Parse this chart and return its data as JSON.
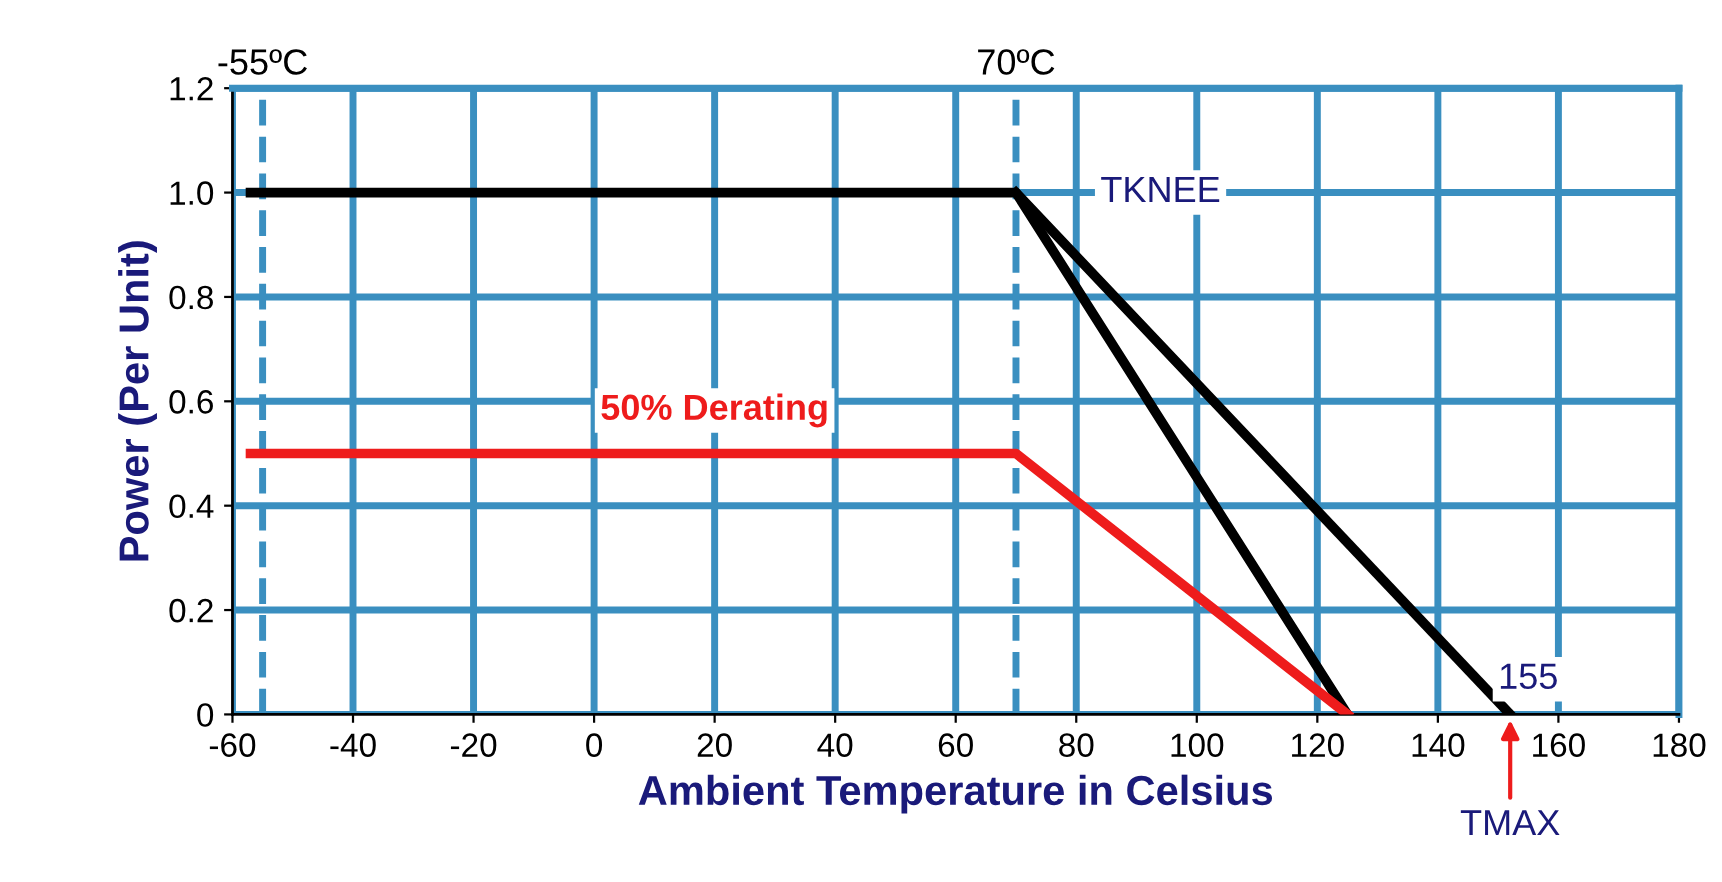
{
  "chart_data": {
    "type": "line",
    "xlabel": "Ambient Temperature in Celsius",
    "ylabel": "Power (Per Unit)",
    "xlim": [
      -60,
      180
    ],
    "xticks": [
      -60,
      -40,
      -20,
      0,
      20,
      40,
      60,
      80,
      100,
      120,
      140,
      160,
      180
    ],
    "ylim": [
      0,
      1.2
    ],
    "yticks": [
      0,
      0.2,
      0.4,
      0.6,
      0.8,
      {
        "value": 1,
        "label": "1.0"
      },
      1.2
    ],
    "grid": true,
    "marker": "none",
    "line_style": "solid",
    "series": [
      {
        "color": "#000000",
        "x": [
          -57,
          70,
          125
        ],
        "values": [
          1.0,
          1.0,
          0
        ]
      },
      {
        "color": "#000000",
        "x": [
          70,
          152
        ],
        "values": [
          1.0,
          0
        ]
      },
      {
        "color": "#ee1c1c",
        "x": [
          -57,
          70,
          125
        ],
        "values": [
          0.5,
          0.5,
          0
        ]
      }
    ],
    "ref_lines": [
      {
        "axis": "x",
        "value": -55,
        "label": "-55ºC",
        "color": "#3a8fc0",
        "line_style": "dashed"
      },
      {
        "axis": "x",
        "value": 70,
        "label": "70ºC",
        "color": "#3a8fc0",
        "line_style": "dashed"
      }
    ],
    "annotations": [
      {
        "text": "TKNEE",
        "x": 70,
        "y": 1.0
      },
      {
        "text": "50% Derating",
        "x": 20,
        "y": 0.5
      },
      {
        "text": "155",
        "x": 152,
        "y": 0
      },
      {
        "text": "TMAX",
        "x": 152,
        "y": 0
      }
    ]
  }
}
